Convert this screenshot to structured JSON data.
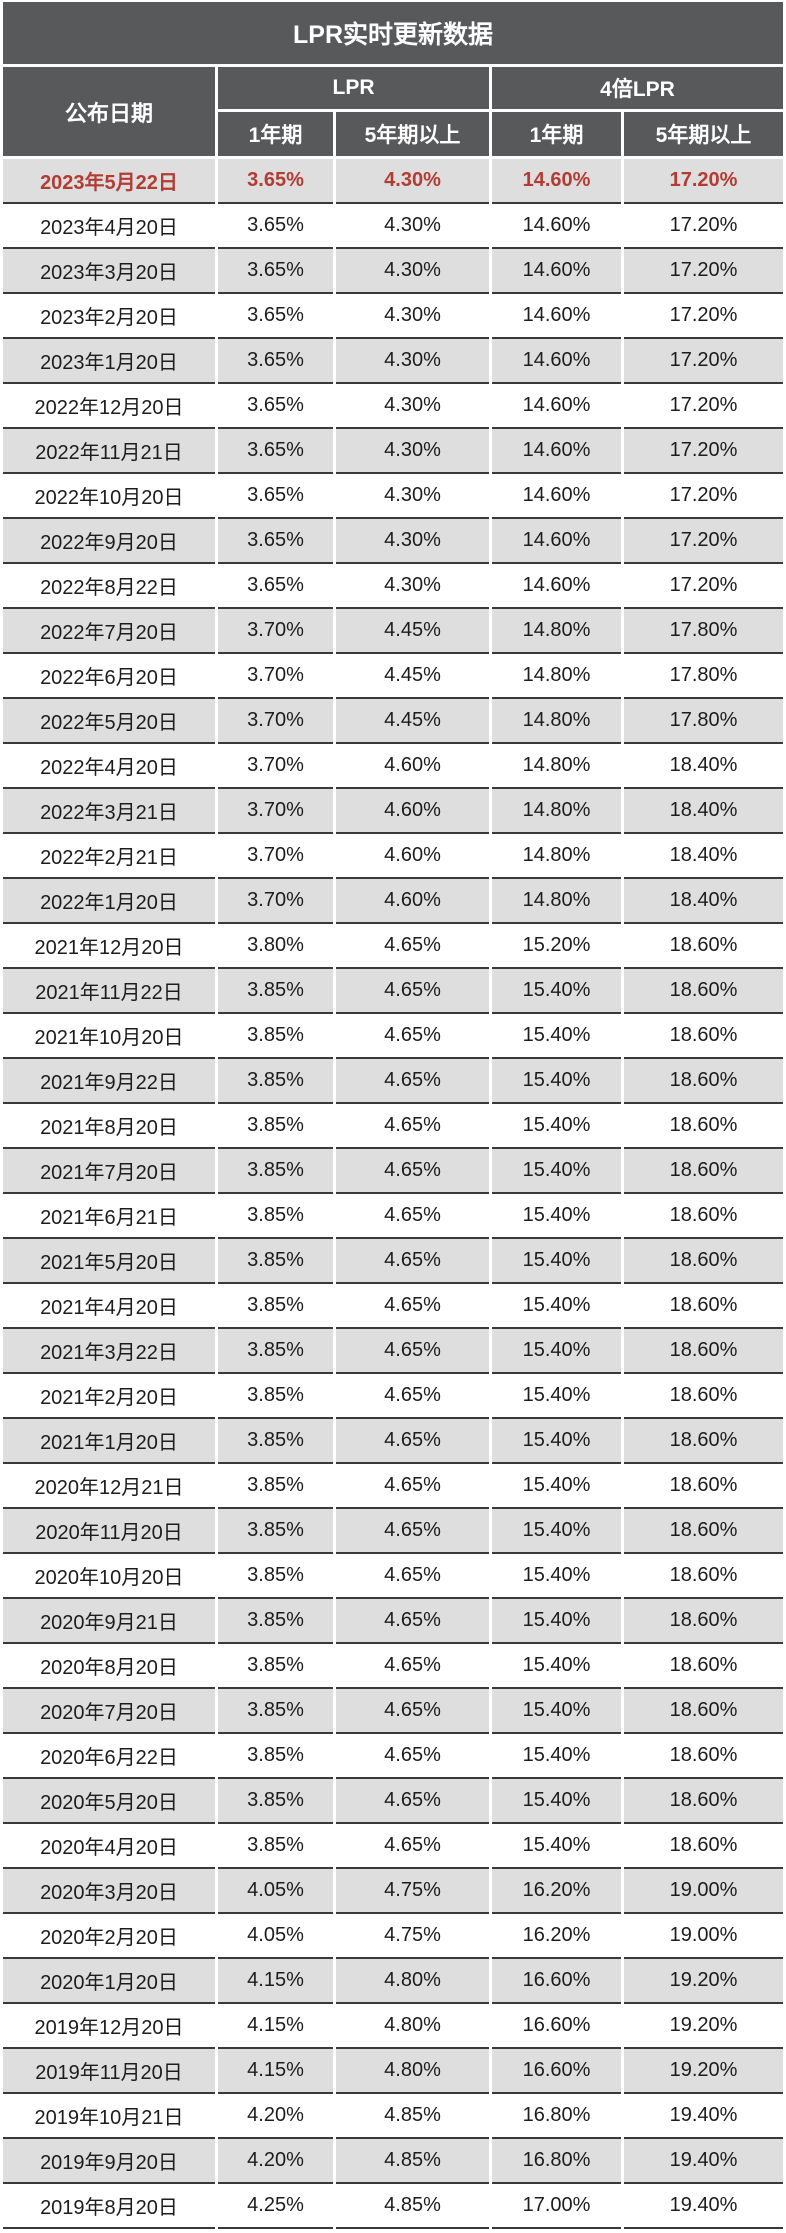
{
  "title": "LPR实时更新数据",
  "header": {
    "date_col": "公布日期",
    "group_lpr": "LPR",
    "group_4x": "4倍LPR",
    "term_1y": "1年期",
    "term_5y": "5年期以上"
  },
  "colors": {
    "header_bg": "#58595b",
    "row_alt_bg": "#dedede",
    "highlight_text": "#b23c33",
    "row_border": "#39393b",
    "text": "#1c1c1c"
  },
  "chart_data": {
    "type": "table",
    "title": "LPR实时更新数据",
    "columns": [
      "公布日期",
      "LPR 1年期",
      "LPR 5年期以上",
      "4倍LPR 1年期",
      "4倍LPR 5年期以上"
    ],
    "highlighted_row": "2023年5月22日",
    "rows": [
      [
        "2023年5月22日",
        "3.65%",
        "4.30%",
        "14.60%",
        "17.20%"
      ],
      [
        "2023年4月20日",
        "3.65%",
        "4.30%",
        "14.60%",
        "17.20%"
      ],
      [
        "2023年3月20日",
        "3.65%",
        "4.30%",
        "14.60%",
        "17.20%"
      ],
      [
        "2023年2月20日",
        "3.65%",
        "4.30%",
        "14.60%",
        "17.20%"
      ],
      [
        "2023年1月20日",
        "3.65%",
        "4.30%",
        "14.60%",
        "17.20%"
      ],
      [
        "2022年12月20日",
        "3.65%",
        "4.30%",
        "14.60%",
        "17.20%"
      ],
      [
        "2022年11月21日",
        "3.65%",
        "4.30%",
        "14.60%",
        "17.20%"
      ],
      [
        "2022年10月20日",
        "3.65%",
        "4.30%",
        "14.60%",
        "17.20%"
      ],
      [
        "2022年9月20日",
        "3.65%",
        "4.30%",
        "14.60%",
        "17.20%"
      ],
      [
        "2022年8月22日",
        "3.65%",
        "4.30%",
        "14.60%",
        "17.20%"
      ],
      [
        "2022年7月20日",
        "3.70%",
        "4.45%",
        "14.80%",
        "17.80%"
      ],
      [
        "2022年6月20日",
        "3.70%",
        "4.45%",
        "14.80%",
        "17.80%"
      ],
      [
        "2022年5月20日",
        "3.70%",
        "4.45%",
        "14.80%",
        "17.80%"
      ],
      [
        "2022年4月20日",
        "3.70%",
        "4.60%",
        "14.80%",
        "18.40%"
      ],
      [
        "2022年3月21日",
        "3.70%",
        "4.60%",
        "14.80%",
        "18.40%"
      ],
      [
        "2022年2月21日",
        "3.70%",
        "4.60%",
        "14.80%",
        "18.40%"
      ],
      [
        "2022年1月20日",
        "3.70%",
        "4.60%",
        "14.80%",
        "18.40%"
      ],
      [
        "2021年12月20日",
        "3.80%",
        "4.65%",
        "15.20%",
        "18.60%"
      ],
      [
        "2021年11月22日",
        "3.85%",
        "4.65%",
        "15.40%",
        "18.60%"
      ],
      [
        "2021年10月20日",
        "3.85%",
        "4.65%",
        "15.40%",
        "18.60%"
      ],
      [
        "2021年9月22日",
        "3.85%",
        "4.65%",
        "15.40%",
        "18.60%"
      ],
      [
        "2021年8月20日",
        "3.85%",
        "4.65%",
        "15.40%",
        "18.60%"
      ],
      [
        "2021年7月20日",
        "3.85%",
        "4.65%",
        "15.40%",
        "18.60%"
      ],
      [
        "2021年6月21日",
        "3.85%",
        "4.65%",
        "15.40%",
        "18.60%"
      ],
      [
        "2021年5月20日",
        "3.85%",
        "4.65%",
        "15.40%",
        "18.60%"
      ],
      [
        "2021年4月20日",
        "3.85%",
        "4.65%",
        "15.40%",
        "18.60%"
      ],
      [
        "2021年3月22日",
        "3.85%",
        "4.65%",
        "15.40%",
        "18.60%"
      ],
      [
        "2021年2月20日",
        "3.85%",
        "4.65%",
        "15.40%",
        "18.60%"
      ],
      [
        "2021年1月20日",
        "3.85%",
        "4.65%",
        "15.40%",
        "18.60%"
      ],
      [
        "2020年12月21日",
        "3.85%",
        "4.65%",
        "15.40%",
        "18.60%"
      ],
      [
        "2020年11月20日",
        "3.85%",
        "4.65%",
        "15.40%",
        "18.60%"
      ],
      [
        "2020年10月20日",
        "3.85%",
        "4.65%",
        "15.40%",
        "18.60%"
      ],
      [
        "2020年9月21日",
        "3.85%",
        "4.65%",
        "15.40%",
        "18.60%"
      ],
      [
        "2020年8月20日",
        "3.85%",
        "4.65%",
        "15.40%",
        "18.60%"
      ],
      [
        "2020年7月20日",
        "3.85%",
        "4.65%",
        "15.40%",
        "18.60%"
      ],
      [
        "2020年6月22日",
        "3.85%",
        "4.65%",
        "15.40%",
        "18.60%"
      ],
      [
        "2020年5月20日",
        "3.85%",
        "4.65%",
        "15.40%",
        "18.60%"
      ],
      [
        "2020年4月20日",
        "3.85%",
        "4.65%",
        "15.40%",
        "18.60%"
      ],
      [
        "2020年3月20日",
        "4.05%",
        "4.75%",
        "16.20%",
        "19.00%"
      ],
      [
        "2020年2月20日",
        "4.05%",
        "4.75%",
        "16.20%",
        "19.00%"
      ],
      [
        "2020年1月20日",
        "4.15%",
        "4.80%",
        "16.60%",
        "19.20%"
      ],
      [
        "2019年12月20日",
        "4.15%",
        "4.80%",
        "16.60%",
        "19.20%"
      ],
      [
        "2019年11月20日",
        "4.15%",
        "4.80%",
        "16.60%",
        "19.20%"
      ],
      [
        "2019年10月21日",
        "4.20%",
        "4.85%",
        "16.80%",
        "19.40%"
      ],
      [
        "2019年9月20日",
        "4.20%",
        "4.85%",
        "16.80%",
        "19.40%"
      ],
      [
        "2019年8月20日",
        "4.25%",
        "4.85%",
        "17.00%",
        "19.40%"
      ]
    ]
  }
}
